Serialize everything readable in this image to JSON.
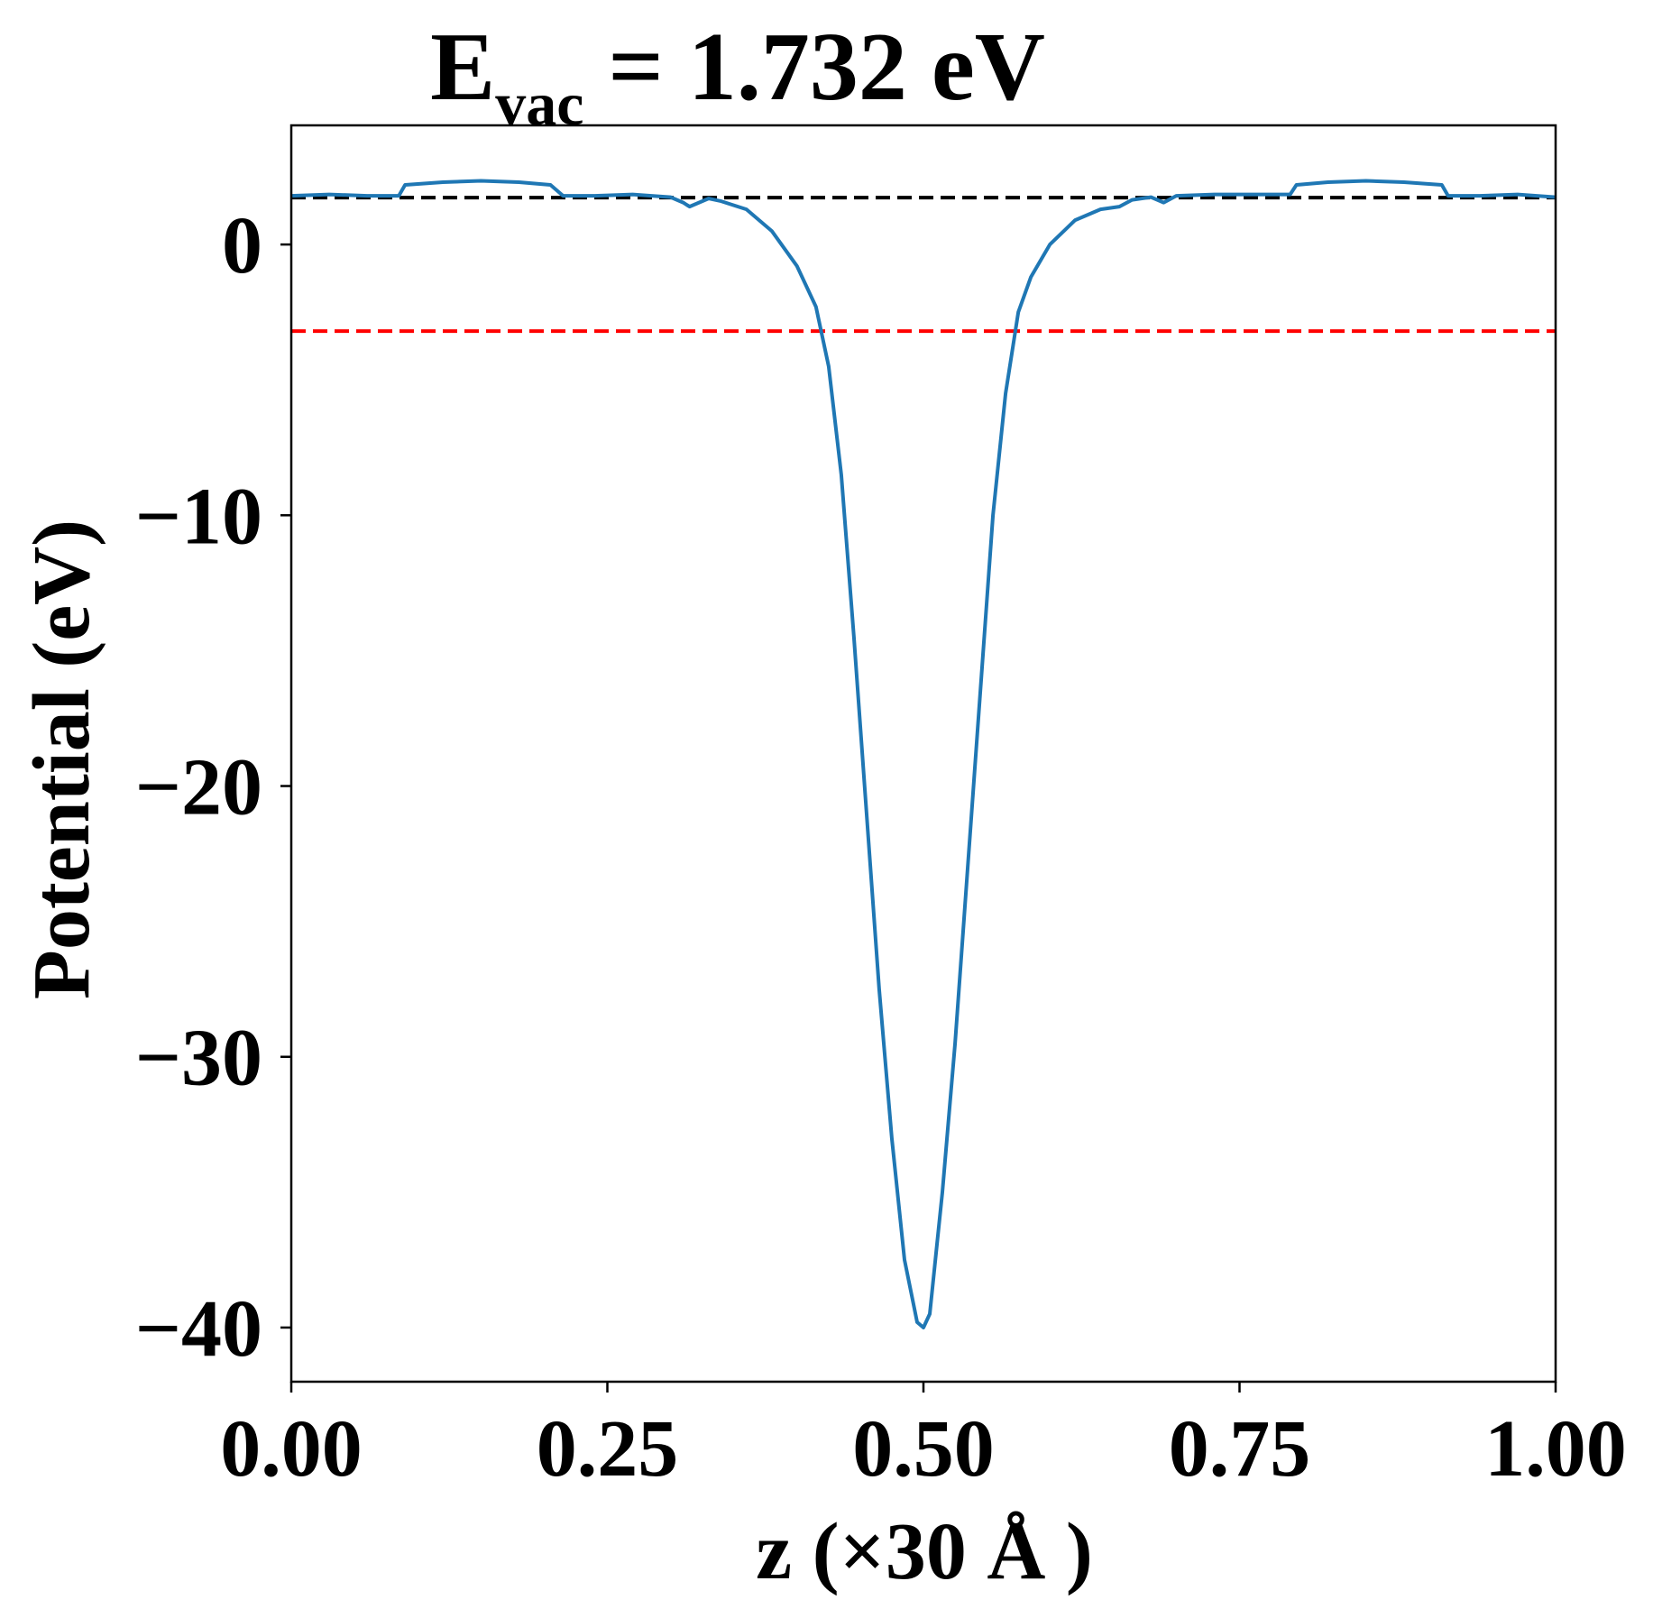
{
  "chart_data": {
    "type": "line",
    "title": {
      "main": "E",
      "subscript": "vac",
      "rest": " = 1.732 eV"
    },
    "xlabel": "z (×30 Å )",
    "ylabel": "Potential (eV)",
    "xlim": [
      0.0,
      1.0
    ],
    "ylim": [
      -42.0,
      4.4
    ],
    "xticks": [
      0.0,
      0.25,
      0.5,
      0.75,
      1.0
    ],
    "xtick_labels": [
      "0.00",
      "0.25",
      "0.50",
      "0.75",
      "1.00"
    ],
    "yticks": [
      0,
      -10,
      -20,
      -30,
      -40
    ],
    "ytick_labels": [
      "0",
      "−10",
      "−20",
      "−30",
      "−40"
    ],
    "grid": false,
    "reference_lines": [
      {
        "y": 1.732,
        "color": "#000000",
        "style": "dashed"
      },
      {
        "y": -3.2,
        "color": "#ff0000",
        "style": "dashed"
      }
    ],
    "series": [
      {
        "color": "#1f77b4",
        "x": [
          0.0,
          0.03,
          0.06,
          0.085,
          0.09,
          0.12,
          0.15,
          0.18,
          0.205,
          0.215,
          0.24,
          0.27,
          0.3,
          0.31,
          0.315,
          0.33,
          0.34,
          0.36,
          0.38,
          0.4,
          0.415,
          0.425,
          0.435,
          0.445,
          0.455,
          0.465,
          0.475,
          0.485,
          0.495,
          0.5,
          0.505,
          0.515,
          0.525,
          0.535,
          0.545,
          0.555,
          0.565,
          0.575,
          0.585,
          0.6,
          0.62,
          0.64,
          0.655,
          0.665,
          0.68,
          0.69,
          0.7,
          0.73,
          0.76,
          0.79,
          0.795,
          0.82,
          0.85,
          0.88,
          0.91,
          0.915,
          0.94,
          0.97,
          1.0
        ],
        "y": [
          1.8,
          1.85,
          1.8,
          1.8,
          2.2,
          2.3,
          2.35,
          2.3,
          2.2,
          1.8,
          1.8,
          1.85,
          1.75,
          1.55,
          1.4,
          1.7,
          1.6,
          1.3,
          0.5,
          -0.8,
          -2.3,
          -4.5,
          -8.5,
          -14.5,
          -21.0,
          -27.5,
          -33.0,
          -37.5,
          -39.8,
          -40.0,
          -39.5,
          -35.0,
          -29.5,
          -23.0,
          -16.5,
          -10.0,
          -5.5,
          -2.5,
          -1.2,
          0.0,
          0.9,
          1.3,
          1.4,
          1.65,
          1.75,
          1.55,
          1.8,
          1.85,
          1.85,
          1.85,
          2.2,
          2.3,
          2.35,
          2.3,
          2.2,
          1.8,
          1.8,
          1.85,
          1.75
        ]
      }
    ]
  }
}
